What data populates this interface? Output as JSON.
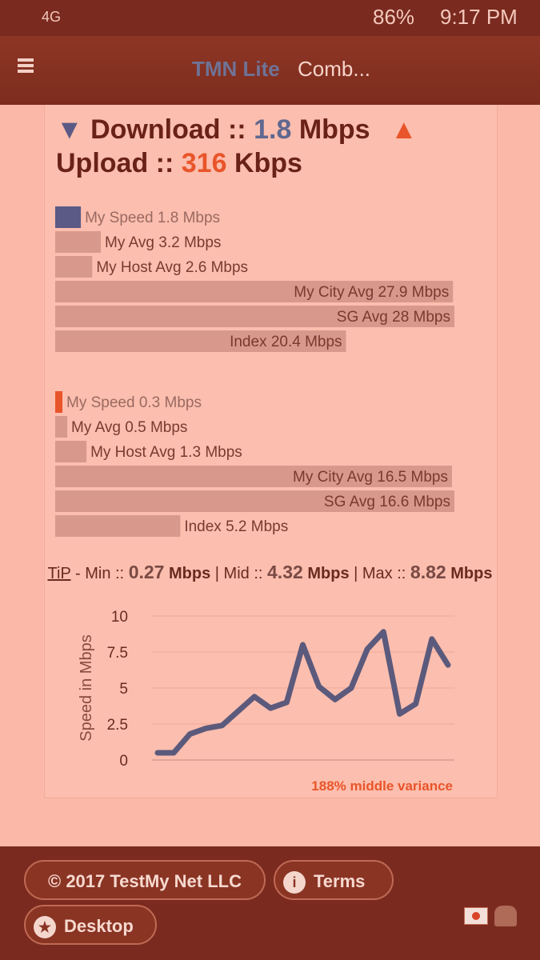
{
  "status_bar": {
    "network": "4G",
    "battery": "86%",
    "time": "9:17 PM"
  },
  "header": {
    "brand": "TMN Lite",
    "title": "Comb..."
  },
  "summary": {
    "download_label": "Download ::",
    "download_value": "1.8",
    "download_unit": "Mbps",
    "upload_label": "Upload ::",
    "upload_value": "316",
    "upload_unit": "Kbps"
  },
  "tip": {
    "link": "TiP",
    "min_label": "- Min ::",
    "min_value": "0.27",
    "min_unit": "Mbps",
    "mid_label": "| Mid ::",
    "mid_value": "4.32",
    "mid_unit": "Mbps",
    "max_label": "| Max ::",
    "max_value": "8.82",
    "max_unit": "Mbps"
  },
  "chart_data": [
    {
      "type": "hbar",
      "values": [
        1.8,
        3.2,
        2.6,
        27.9,
        28,
        20.4
      ],
      "value_labels": [
        "My Speed 1.8 Mbps",
        "My Avg 3.2 Mbps",
        "My Host Avg 2.6 Mbps",
        "My City Avg 27.9 Mbps",
        "SG Avg 28 Mbps",
        "Index 20.4 Mbps"
      ],
      "colors": [
        "#5b5a86",
        "#d9988c",
        "#d9988c",
        "#d9988c",
        "#d9988c",
        "#d9988c"
      ]
    },
    {
      "type": "hbar",
      "values": [
        0.3,
        0.5,
        1.3,
        16.5,
        16.6,
        5.2
      ],
      "value_labels": [
        "My Speed 0.3 Mbps",
        "My Avg 0.5 Mbps",
        "My Host Avg 1.3 Mbps",
        "My City Avg 16.5 Mbps",
        "SG Avg 16.6 Mbps",
        "Index 5.2 Mbps"
      ],
      "colors": [
        "#e8552a",
        "#d9988c",
        "#d9988c",
        "#d9988c",
        "#d9988c",
        "#d9988c"
      ]
    },
    {
      "type": "line",
      "y_label": "Speed in Mbps",
      "annotation": "188% middle variance",
      "color": "#5b5a7c",
      "values": [
        0.5,
        0.5,
        1.8,
        2.2,
        2.4,
        3.4,
        4.4,
        3.6,
        4.0,
        8.0,
        5.1,
        4.2,
        5.0,
        7.7,
        8.9,
        3.2,
        3.9,
        8.4,
        6.6
      ],
      "ylim": [
        0,
        10
      ],
      "yticks": [
        0,
        2.5,
        5,
        7.5,
        10
      ],
      "grid": true
    }
  ],
  "footer": {
    "copyright": "© 2017 TestMy Net LLC",
    "terms": "Terms",
    "desktop": "Desktop"
  }
}
